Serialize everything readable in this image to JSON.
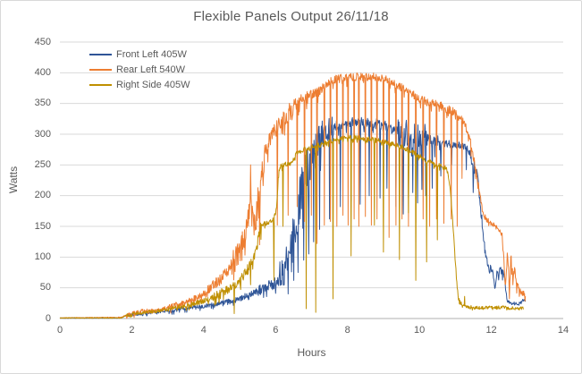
{
  "window": {
    "background": "#ffffff",
    "border_color": "#d9d9d9"
  },
  "chart_data": {
    "type": "line",
    "title": "Flexible Panels Output 26/11/18",
    "xlabel": "Hours",
    "ylabel": "Watts",
    "xlim": [
      0,
      14
    ],
    "ylim": [
      0,
      450
    ],
    "x_ticks": [
      0,
      2,
      4,
      6,
      8,
      10,
      12,
      14
    ],
    "y_ticks": [
      0,
      50,
      100,
      150,
      200,
      250,
      300,
      350,
      400,
      450
    ],
    "grid": "horizontal-only",
    "gridline_color": "#d9d9d9",
    "axis_line_color": "#bfbfbf",
    "text_color": "#595959",
    "legend_position": "top-left-inside",
    "sample_step": 0.012,
    "series": [
      {
        "name": "Front Left 405W",
        "color": "#2F5597",
        "mean": [
          [
            0,
            1
          ],
          [
            1.7,
            1
          ],
          [
            1.85,
            5
          ],
          [
            2.1,
            7
          ],
          [
            2.4,
            9
          ],
          [
            2.7,
            11
          ],
          [
            3.0,
            13
          ],
          [
            3.3,
            15
          ],
          [
            3.7,
            18
          ],
          [
            4.0,
            20
          ],
          [
            4.3,
            23
          ],
          [
            4.6,
            26
          ],
          [
            5.0,
            32
          ],
          [
            5.3,
            40
          ],
          [
            5.6,
            47
          ],
          [
            5.9,
            55
          ],
          [
            6.1,
            63
          ],
          [
            6.2,
            72
          ],
          [
            6.3,
            92
          ],
          [
            6.4,
            118
          ],
          [
            6.5,
            148
          ],
          [
            6.6,
            172
          ],
          [
            6.7,
            198
          ],
          [
            6.8,
            228
          ],
          [
            6.9,
            248
          ],
          [
            7.0,
            260
          ],
          [
            7.1,
            272
          ],
          [
            7.2,
            285
          ],
          [
            7.35,
            300
          ],
          [
            7.5,
            310
          ],
          [
            7.7,
            315
          ],
          [
            8.0,
            318
          ],
          [
            8.3,
            321
          ],
          [
            8.6,
            318
          ],
          [
            8.9,
            315
          ],
          [
            9.1,
            312
          ],
          [
            9.3,
            306
          ],
          [
            9.5,
            300
          ],
          [
            9.7,
            294
          ],
          [
            9.9,
            290
          ],
          [
            10.1,
            288
          ],
          [
            10.4,
            287
          ],
          [
            10.7,
            285
          ],
          [
            11.0,
            283
          ],
          [
            11.2,
            281
          ],
          [
            11.35,
            278
          ],
          [
            11.45,
            258
          ],
          [
            11.55,
            242
          ],
          [
            11.6,
            236
          ],
          [
            11.65,
            212
          ],
          [
            11.7,
            182
          ],
          [
            11.75,
            152
          ],
          [
            11.8,
            122
          ],
          [
            11.85,
            100
          ],
          [
            11.9,
            82
          ],
          [
            12.0,
            82
          ],
          [
            12.05,
            74
          ],
          [
            12.1,
            50
          ],
          [
            12.15,
            72
          ],
          [
            12.25,
            78
          ],
          [
            12.35,
            74
          ],
          [
            12.4,
            45
          ],
          [
            12.45,
            28
          ],
          [
            12.55,
            24
          ],
          [
            12.65,
            25
          ],
          [
            12.75,
            22
          ],
          [
            12.85,
            28
          ],
          [
            12.95,
            30
          ]
        ],
        "noise_amp": [
          [
            0,
            0.5
          ],
          [
            1.85,
            2.5
          ],
          [
            3,
            3.5
          ],
          [
            4.5,
            5
          ],
          [
            5.5,
            9
          ],
          [
            6.1,
            28
          ],
          [
            6.55,
            40
          ],
          [
            7.0,
            30
          ],
          [
            7.35,
            18
          ],
          [
            7.7,
            8
          ],
          [
            8.8,
            10
          ],
          [
            9.4,
            22
          ],
          [
            9.6,
            32
          ],
          [
            10.2,
            12
          ],
          [
            10.6,
            6
          ],
          [
            11.4,
            10
          ],
          [
            11.9,
            6
          ],
          [
            12.4,
            3
          ],
          [
            12.95,
            0
          ]
        ],
        "dropout_spikes": [
          [
            6.35,
            40
          ],
          [
            6.5,
            62
          ],
          [
            6.62,
            75
          ],
          [
            6.78,
            95
          ],
          [
            6.92,
            105
          ],
          [
            7.05,
            125
          ],
          [
            7.22,
            145
          ],
          [
            7.5,
            162
          ],
          [
            7.8,
            182
          ],
          [
            8.1,
            192
          ],
          [
            8.35,
            186
          ],
          [
            8.6,
            200
          ],
          [
            8.9,
            196
          ],
          [
            9.1,
            212
          ],
          [
            9.35,
            182
          ],
          [
            9.55,
            170
          ],
          [
            9.7,
            196
          ],
          [
            9.82,
            205
          ],
          [
            9.95,
            188
          ],
          [
            10.07,
            210
          ],
          [
            10.18,
            200
          ],
          [
            10.35,
            212
          ],
          [
            10.6,
            232
          ],
          [
            10.9,
            250
          ],
          [
            11.3,
            242
          ],
          [
            11.5,
            205
          ]
        ]
      },
      {
        "name": "Rear Left 540W",
        "color": "#ED7D31",
        "mean": [
          [
            0,
            1
          ],
          [
            1.7,
            2
          ],
          [
            1.85,
            6
          ],
          [
            2.1,
            9
          ],
          [
            2.35,
            13
          ],
          [
            2.6,
            12
          ],
          [
            2.85,
            15
          ],
          [
            3.1,
            19
          ],
          [
            3.35,
            24
          ],
          [
            3.6,
            29
          ],
          [
            3.85,
            35
          ],
          [
            4.1,
            44
          ],
          [
            4.3,
            54
          ],
          [
            4.5,
            66
          ],
          [
            4.7,
            80
          ],
          [
            4.9,
            98
          ],
          [
            5.05,
            118
          ],
          [
            5.2,
            148
          ],
          [
            5.3,
            182
          ],
          [
            5.4,
            165
          ],
          [
            5.5,
            180
          ],
          [
            5.6,
            220
          ],
          [
            5.7,
            258
          ],
          [
            5.8,
            288
          ],
          [
            5.9,
            300
          ],
          [
            6.0,
            310
          ],
          [
            6.15,
            320
          ],
          [
            6.3,
            330
          ],
          [
            6.45,
            342
          ],
          [
            6.6,
            352
          ],
          [
            6.8,
            357
          ],
          [
            7.0,
            363
          ],
          [
            7.2,
            370
          ],
          [
            7.4,
            380
          ],
          [
            7.6,
            388
          ],
          [
            7.9,
            392
          ],
          [
            8.2,
            394
          ],
          [
            8.5,
            392
          ],
          [
            8.8,
            393
          ],
          [
            9.0,
            390
          ],
          [
            9.2,
            386
          ],
          [
            9.5,
            376
          ],
          [
            9.8,
            366
          ],
          [
            10.0,
            358
          ],
          [
            10.3,
            351
          ],
          [
            10.6,
            346
          ],
          [
            10.9,
            338
          ],
          [
            11.1,
            331
          ],
          [
            11.25,
            318
          ],
          [
            11.35,
            302
          ],
          [
            11.45,
            278
          ],
          [
            11.55,
            245
          ],
          [
            11.65,
            212
          ],
          [
            11.75,
            178
          ],
          [
            11.85,
            162
          ],
          [
            12.0,
            155
          ],
          [
            12.1,
            151
          ],
          [
            12.2,
            148
          ],
          [
            12.3,
            135
          ],
          [
            12.35,
            90
          ],
          [
            12.4,
            52
          ],
          [
            12.45,
            115
          ],
          [
            12.5,
            46
          ],
          [
            12.55,
            105
          ],
          [
            12.6,
            62
          ],
          [
            12.65,
            76
          ],
          [
            12.7,
            50
          ],
          [
            12.8,
            44
          ],
          [
            12.85,
            48
          ],
          [
            12.9,
            42
          ],
          [
            12.95,
            26
          ]
        ],
        "noise_amp": [
          [
            0,
            0.5
          ],
          [
            1.85,
            3.5
          ],
          [
            3,
            5
          ],
          [
            4.1,
            10
          ],
          [
            4.8,
            20
          ],
          [
            5.25,
            30
          ],
          [
            5.8,
            15
          ],
          [
            6.5,
            10
          ],
          [
            7.2,
            7
          ],
          [
            11.3,
            8
          ],
          [
            11.85,
            5
          ],
          [
            12.3,
            10
          ],
          [
            12.95,
            0
          ]
        ],
        "dropout_spikes": [
          [
            5.3,
            250
          ],
          [
            5.55,
            120
          ],
          [
            6.05,
            152
          ],
          [
            6.35,
            168
          ],
          [
            6.6,
            182
          ],
          [
            6.8,
            158
          ],
          [
            7.0,
            168
          ],
          [
            7.15,
            122
          ],
          [
            7.35,
            152
          ],
          [
            7.52,
            158
          ],
          [
            7.7,
            150
          ],
          [
            7.87,
            168
          ],
          [
            8.02,
            152
          ],
          [
            8.18,
            162
          ],
          [
            8.32,
            150
          ],
          [
            8.5,
            166
          ],
          [
            8.66,
            152
          ],
          [
            8.82,
            162
          ],
          [
            9.0,
            150
          ],
          [
            9.16,
            132
          ],
          [
            9.35,
            152
          ],
          [
            9.52,
            162
          ],
          [
            9.7,
            150
          ],
          [
            9.9,
            156
          ],
          [
            10.1,
            162
          ],
          [
            10.28,
            150
          ],
          [
            10.48,
            162
          ],
          [
            10.68,
            155
          ],
          [
            10.88,
            162
          ],
          [
            11.05,
            150
          ],
          [
            11.18,
            228
          ]
        ]
      },
      {
        "name": "Right Side 405W",
        "color": "#BF8F00",
        "mean": [
          [
            0,
            1
          ],
          [
            1.7,
            1
          ],
          [
            1.85,
            5
          ],
          [
            2.1,
            8
          ],
          [
            2.4,
            10
          ],
          [
            2.7,
            12
          ],
          [
            3.0,
            15
          ],
          [
            3.3,
            18
          ],
          [
            3.6,
            22
          ],
          [
            3.9,
            27
          ],
          [
            4.2,
            33
          ],
          [
            4.5,
            42
          ],
          [
            4.8,
            52
          ],
          [
            5.0,
            62
          ],
          [
            5.2,
            76
          ],
          [
            5.35,
            92
          ],
          [
            5.45,
            108
          ],
          [
            5.52,
            128
          ],
          [
            5.58,
            148
          ],
          [
            5.65,
            154
          ],
          [
            5.8,
            157
          ],
          [
            5.95,
            160
          ],
          [
            6.02,
            178
          ],
          [
            6.08,
            232
          ],
          [
            6.12,
            248
          ],
          [
            6.3,
            251
          ],
          [
            6.45,
            253
          ],
          [
            6.52,
            262
          ],
          [
            6.58,
            270
          ],
          [
            6.75,
            274
          ],
          [
            7.0,
            279
          ],
          [
            7.2,
            282
          ],
          [
            7.45,
            287
          ],
          [
            7.7,
            291
          ],
          [
            8.0,
            294
          ],
          [
            8.3,
            295
          ],
          [
            8.6,
            292
          ],
          [
            8.9,
            289
          ],
          [
            9.1,
            286
          ],
          [
            9.35,
            282
          ],
          [
            9.6,
            277
          ],
          [
            9.8,
            271
          ],
          [
            10.0,
            264
          ],
          [
            10.2,
            258
          ],
          [
            10.4,
            252
          ],
          [
            10.6,
            248
          ],
          [
            10.75,
            244
          ],
          [
            10.82,
            228
          ],
          [
            10.88,
            195
          ],
          [
            10.93,
            155
          ],
          [
            10.98,
            110
          ],
          [
            11.03,
            65
          ],
          [
            11.08,
            38
          ],
          [
            11.13,
            26
          ],
          [
            11.2,
            21
          ],
          [
            11.35,
            19
          ],
          [
            11.5,
            18
          ],
          [
            11.7,
            17
          ],
          [
            11.9,
            18
          ],
          [
            12.1,
            17
          ],
          [
            12.3,
            18
          ],
          [
            12.5,
            16
          ],
          [
            12.7,
            17
          ],
          [
            12.9,
            16
          ]
        ],
        "noise_amp": [
          [
            0,
            0.5
          ],
          [
            1.85,
            2.5
          ],
          [
            3,
            4
          ],
          [
            4.2,
            7
          ],
          [
            5.0,
            10
          ],
          [
            5.6,
            5
          ],
          [
            6.12,
            4
          ],
          [
            7.0,
            4
          ],
          [
            10.8,
            4
          ],
          [
            11.2,
            3
          ],
          [
            12.9,
            0
          ]
        ],
        "dropout_spikes": [
          [
            4.85,
            8
          ],
          [
            5.3,
            55
          ],
          [
            5.95,
            62
          ],
          [
            6.2,
            150
          ],
          [
            6.85,
            16
          ],
          [
            7.12,
            10
          ],
          [
            7.6,
            32
          ],
          [
            8.1,
            102
          ],
          [
            8.75,
            152
          ],
          [
            9.0,
            108
          ],
          [
            9.45,
            96
          ],
          [
            9.7,
            172
          ],
          [
            9.9,
            62
          ],
          [
            10.2,
            92
          ],
          [
            10.5,
            128
          ],
          [
            11.25,
            36
          ]
        ]
      }
    ]
  }
}
